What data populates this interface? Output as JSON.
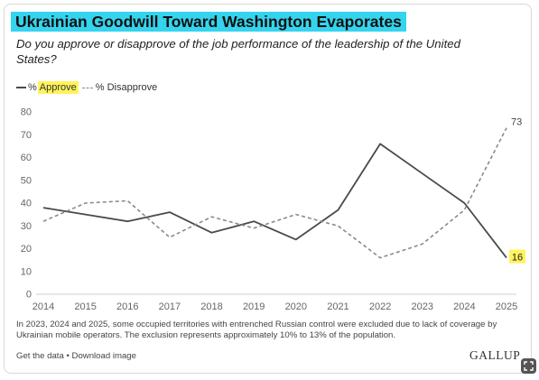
{
  "header": {
    "title": "Ukrainian Goodwill Toward Washington Evaporates",
    "subtitle": "Do you approve or disapprove of the job performance of the leadership of the United States?"
  },
  "legend": {
    "approve_prefix": "%",
    "approve_label": "Approve",
    "disapprove_label": "% Disapprove"
  },
  "footnote": "In 2023, 2024 and 2025, some occupied territories with entrenched Russian control were excluded due to lack of coverage by Ukrainian mobile operators. The exclusion represents approximately 10% to 13% of the population.",
  "footer": {
    "get_data": "Get the data",
    "separator": "•",
    "download": "Download image",
    "brand": "GALLUP"
  },
  "colors": {
    "title_highlight": "#35d4ee",
    "label_highlight": "#fff35c",
    "approve_line": "#4a4a4a",
    "disapprove_line": "#8a8a8a"
  },
  "icons": {
    "corner_button": "expand-icon"
  },
  "chart_data": {
    "type": "line",
    "x": [
      2014,
      2015,
      2016,
      2017,
      2018,
      2019,
      2020,
      2021,
      2022,
      2023,
      2024,
      2025
    ],
    "ylim": [
      0,
      80
    ],
    "yticks": [
      0,
      10,
      20,
      30,
      40,
      50,
      60,
      70,
      80
    ],
    "grid": false,
    "legend_position": "top-left",
    "series": [
      {
        "name": "% Approve",
        "style": "solid",
        "values": [
          38,
          35,
          32,
          36,
          27,
          32,
          24,
          37,
          66,
          53,
          40,
          16
        ],
        "end_label": "16"
      },
      {
        "name": "% Disapprove",
        "style": "dashed",
        "values": [
          32,
          40,
          41,
          25,
          34,
          29,
          35,
          30,
          16,
          22,
          37,
          73
        ],
        "end_label": "73"
      }
    ]
  }
}
